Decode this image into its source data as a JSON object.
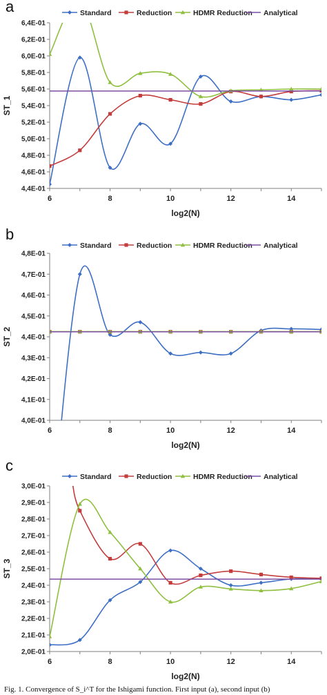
{
  "caption": "Fig. 1. Convergence of S_i^T for the Ishigami function. First input (a), second input (b)",
  "chart_data": [
    {
      "panel_label": "a",
      "type": "line",
      "xlabel": "log2(N)",
      "ylabel": "ST_1",
      "xlim": [
        6,
        15
      ],
      "ylim": [
        0.44,
        0.64
      ],
      "x_ticks": [
        6,
        8,
        10,
        12,
        14
      ],
      "y_ticks": [
        "4,4E-01",
        "4,6E-01",
        "4,8E-01",
        "5,0E-01",
        "5,2E-01",
        "5,4E-01",
        "5,6E-01",
        "5,8E-01",
        "6,0E-01",
        "6,2E-01",
        "6,4E-01"
      ],
      "y_tick_values": [
        0.44,
        0.46,
        0.48,
        0.5,
        0.52,
        0.54,
        0.56,
        0.58,
        0.6,
        0.62,
        0.64
      ],
      "grid": false,
      "legend_position": "top",
      "series": [
        {
          "name": "Standard",
          "color": "#3d6fc4",
          "marker": "diamond",
          "x": [
            6,
            7,
            8,
            9,
            10,
            11,
            12,
            13,
            14,
            15
          ],
          "y": [
            0.445,
            0.598,
            0.465,
            0.518,
            0.494,
            0.575,
            0.545,
            0.551,
            0.547,
            0.553
          ]
        },
        {
          "name": "Reduction",
          "color": "#c43d3d",
          "marker": "square",
          "x": [
            6,
            7,
            8,
            9,
            10,
            11,
            12,
            13,
            14,
            15
          ],
          "y": [
            0.467,
            0.486,
            0.53,
            0.552,
            0.547,
            0.542,
            0.557,
            0.551,
            0.557,
            0.558
          ]
        },
        {
          "name": "HDMR Reduction",
          "color": "#8fbf3f",
          "marker": "triangle",
          "x": [
            6,
            7,
            8,
            9,
            10,
            11,
            12,
            13,
            14,
            15
          ],
          "y": [
            0.602,
            0.668,
            0.568,
            0.579,
            0.578,
            0.551,
            0.558,
            0.559,
            0.56,
            0.56
          ]
        },
        {
          "name": "Analytical",
          "color": "#7b4ea3",
          "marker": "none",
          "x": [
            6,
            15
          ],
          "y": [
            0.5576,
            0.5576
          ]
        }
      ]
    },
    {
      "panel_label": "b",
      "type": "line",
      "xlabel": "log2(N)",
      "ylabel": "ST_2",
      "xlim": [
        6,
        15
      ],
      "ylim": [
        0.4,
        0.48
      ],
      "x_ticks": [
        6,
        8,
        10,
        12,
        14
      ],
      "y_ticks": [
        "4,0E-01",
        "4,1E-01",
        "4,2E-01",
        "4,3E-01",
        "4,4E-01",
        "4,5E-01",
        "4,6E-01",
        "4,7E-01",
        "4,8E-01"
      ],
      "y_tick_values": [
        0.4,
        0.41,
        0.42,
        0.43,
        0.44,
        0.45,
        0.46,
        0.47,
        0.48
      ],
      "grid": false,
      "legend_position": "top",
      "series": [
        {
          "name": "Standard",
          "color": "#3d6fc4",
          "marker": "diamond",
          "x": [
            6,
            7,
            8,
            9,
            10,
            11,
            12,
            13,
            14,
            15
          ],
          "y": [
            0.34,
            0.47,
            0.441,
            0.447,
            0.432,
            0.4325,
            0.432,
            0.443,
            0.4438,
            0.4435
          ]
        },
        {
          "name": "Reduction",
          "color": "#c43d3d",
          "marker": "square",
          "x": [
            6,
            7,
            8,
            9,
            10,
            11,
            12,
            13,
            14,
            15
          ],
          "y": [
            0.4424,
            0.4424,
            0.4424,
            0.4424,
            0.4424,
            0.4424,
            0.4424,
            0.4424,
            0.4424,
            0.4424
          ]
        },
        {
          "name": "HDMR Reduction",
          "color": "#8fbf3f",
          "marker": "triangle",
          "x": [
            6,
            7,
            8,
            9,
            10,
            11,
            12,
            13,
            14,
            15
          ],
          "y": [
            0.4425,
            0.4425,
            0.4425,
            0.4425,
            0.4425,
            0.4425,
            0.4425,
            0.4425,
            0.4425,
            0.4425
          ]
        },
        {
          "name": "Analytical",
          "color": "#7b4ea3",
          "marker": "none",
          "x": [
            6,
            15
          ],
          "y": [
            0.4424,
            0.4424
          ]
        }
      ]
    },
    {
      "panel_label": "c",
      "type": "line",
      "xlabel": "log2(N)",
      "ylabel": "ST_3",
      "xlim": [
        6,
        15
      ],
      "ylim": [
        0.2,
        0.3
      ],
      "x_ticks": [
        6,
        8,
        10,
        12,
        14
      ],
      "y_ticks": [
        "2,0E-01",
        "2,1E-01",
        "2,2E-01",
        "2,3E-01",
        "2,4E-01",
        "2,5E-01",
        "2,6E-01",
        "2,7E-01",
        "2,8E-01",
        "2,9E-01",
        "3,0E-01"
      ],
      "y_tick_values": [
        0.2,
        0.21,
        0.22,
        0.23,
        0.24,
        0.25,
        0.26,
        0.27,
        0.28,
        0.29,
        0.3
      ],
      "grid": false,
      "legend_position": "top",
      "series": [
        {
          "name": "Standard",
          "color": "#3d6fc4",
          "marker": "diamond",
          "x": [
            6,
            7,
            8,
            9,
            10,
            11,
            12,
            13,
            14,
            15
          ],
          "y": [
            0.204,
            0.207,
            0.231,
            0.242,
            0.261,
            0.25,
            0.24,
            0.2415,
            0.2438,
            0.244
          ]
        },
        {
          "name": "Reduction",
          "color": "#c43d3d",
          "marker": "square",
          "x": [
            6.75,
            7,
            8,
            9,
            10,
            11,
            12,
            13,
            14,
            15
          ],
          "y": [
            0.302,
            0.285,
            0.256,
            0.265,
            0.2415,
            0.246,
            0.2485,
            0.2465,
            0.2448,
            0.2442
          ]
        },
        {
          "name": "HDMR Reduction",
          "color": "#8fbf3f",
          "marker": "triangle",
          "x": [
            6,
            7,
            8,
            9,
            10,
            11,
            12,
            13,
            14,
            15
          ],
          "y": [
            0.209,
            0.289,
            0.272,
            0.25,
            0.23,
            0.239,
            0.2378,
            0.2368,
            0.238,
            0.2423
          ]
        },
        {
          "name": "Analytical",
          "color": "#7b4ea3",
          "marker": "none",
          "x": [
            6,
            15
          ],
          "y": [
            0.2437,
            0.2437
          ]
        }
      ]
    }
  ]
}
